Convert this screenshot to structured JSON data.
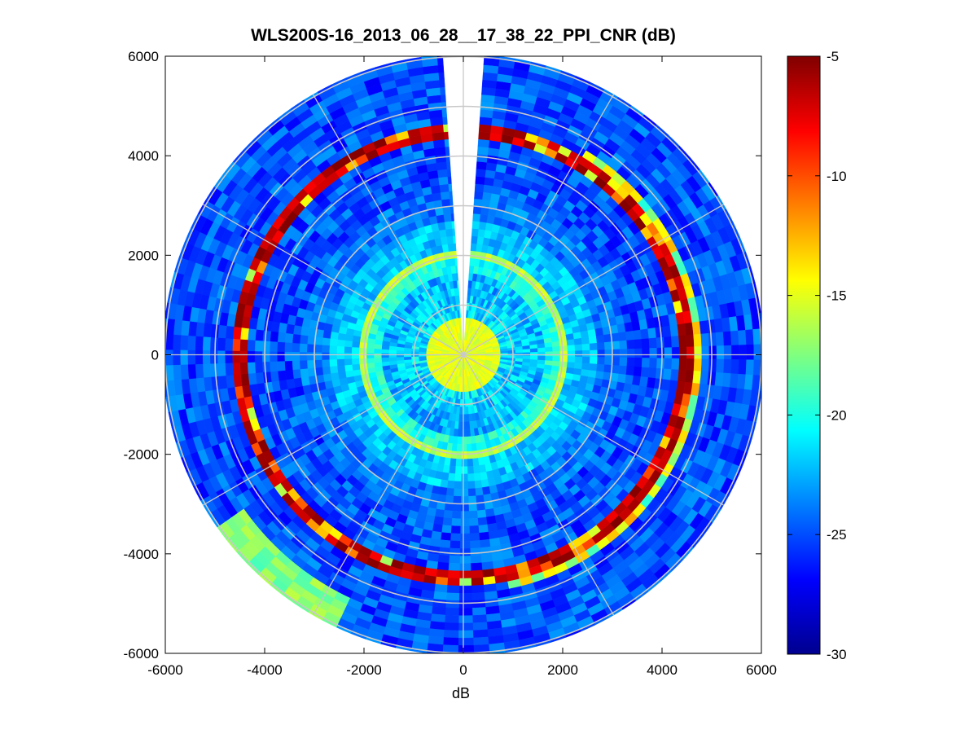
{
  "chart_data": {
    "type": "heatmap",
    "subtype": "polar-ppi",
    "title": "WLS200S-16_2013_06_28__17_38_22_PPI_CNR (dB)",
    "xlabel": "dB",
    "ylabel": "",
    "xlim": [
      -6000,
      6000
    ],
    "ylim": [
      -6000,
      6000
    ],
    "x_ticks": [
      "-6000",
      "-4000",
      "-2000",
      "0",
      "2000",
      "4000",
      "6000"
    ],
    "y_ticks": [
      "6000",
      "4000",
      "2000",
      "0",
      "-2000",
      "-4000",
      "-6000"
    ],
    "x_tick_values": [
      -6000,
      -4000,
      -2000,
      0,
      2000,
      4000,
      6000
    ],
    "y_tick_values": [
      6000,
      4000,
      2000,
      0,
      -2000,
      -4000,
      -6000
    ],
    "max_range": 6050,
    "range_rings": [
      1000,
      2000,
      3000,
      4000,
      5000,
      6000
    ],
    "spoke_angles_deg": [
      0,
      30,
      60,
      90,
      120,
      150,
      180,
      210,
      240,
      270,
      300,
      330
    ],
    "blind_sector_deg": [
      -4,
      4
    ],
    "colorbar": {
      "range": [
        -30,
        -5
      ],
      "ticks": [
        "-5",
        "-10",
        "-15",
        "-20",
        "-25",
        "-30"
      ],
      "tick_values": [
        -5,
        -10,
        -15,
        -20,
        -25,
        -30
      ],
      "colormap": "jet"
    },
    "features": {
      "background_cnr_db": -25,
      "center_cnr_db": -15,
      "bright_ring_range_m": 2000,
      "bright_ring_cnr_db": -16,
      "hard_target_ring_range_m": 4500,
      "hard_target_cnr_db": -5
    }
  }
}
